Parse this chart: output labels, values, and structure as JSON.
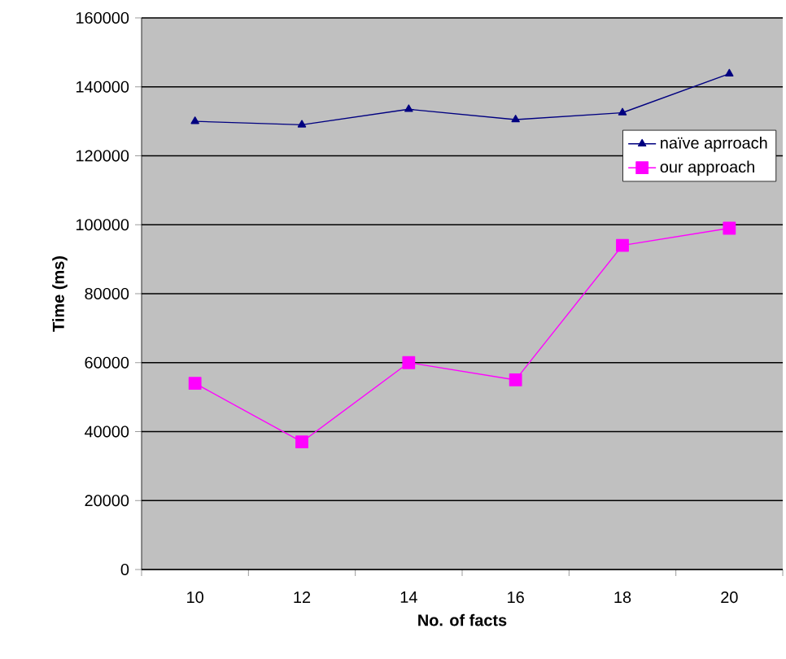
{
  "chart_data": {
    "type": "line",
    "xlabel": "No. of facts",
    "ylabel": "Time (ms)",
    "categories": [
      "10",
      "12",
      "14",
      "16",
      "18",
      "20"
    ],
    "series": [
      {
        "name": "naïve aprroach",
        "color": "#000080",
        "marker": "triangle",
        "values": [
          130000,
          129000,
          133500,
          130500,
          132500,
          143800
        ]
      },
      {
        "name": "our approach",
        "color": "#ff00ff",
        "marker": "square",
        "values": [
          54000,
          37000,
          60000,
          55000,
          94000,
          99000
        ]
      }
    ],
    "ylim": [
      0,
      160000
    ],
    "yticks": [
      0,
      20000,
      40000,
      60000,
      80000,
      100000,
      120000,
      140000,
      160000
    ],
    "grid": "y",
    "legend": "right",
    "line_style": "solid"
  }
}
